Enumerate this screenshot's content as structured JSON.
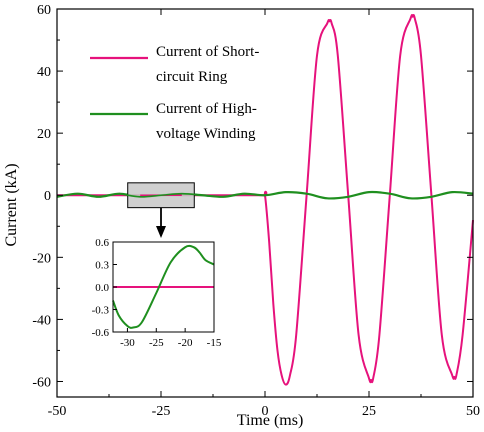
{
  "chart_data": {
    "type": "line",
    "xlabel": "Time (ms)",
    "ylabel": "Current (kA)",
    "xlim": [
      -50,
      50
    ],
    "ylim": [
      -65,
      60
    ],
    "x_ticks": [
      "-50",
      "-25",
      "0",
      "25",
      "50"
    ],
    "y_ticks": [
      "60",
      "40",
      "20",
      "0",
      "-20",
      "-40",
      "-60"
    ],
    "grid": false,
    "legend_position": "top-left",
    "series": [
      {
        "name": "Current of Short-circuit Ring",
        "legend_lines": [
          "Current of Short-",
          "circuit Ring"
        ],
        "color": "#e6127c",
        "x": [
          -50,
          -40,
          -30,
          -20,
          -10,
          -0.5,
          0,
          1,
          2,
          3,
          4,
          5,
          6,
          7.5,
          10,
          12.5,
          15,
          15.5,
          16,
          17.5,
          20,
          22.5,
          25,
          25.5,
          26,
          27.5,
          30,
          32.5,
          35,
          35.5,
          36,
          37.5,
          40,
          42.5,
          45,
          45.5,
          46,
          47.5,
          50
        ],
        "y": [
          0,
          0,
          0,
          0,
          0,
          0,
          0,
          -15,
          -35,
          -50,
          -58,
          -61,
          -58,
          -45,
          0,
          45,
          55.5,
          56,
          55.5,
          45,
          0,
          -45,
          -59,
          -59.5,
          -59,
          -45,
          0,
          45,
          57,
          57.5,
          57,
          45,
          0,
          -45,
          -58,
          -58.5,
          -58,
          -45,
          -8
        ]
      },
      {
        "name": "Current of High-voltage Winding",
        "legend_lines": [
          "Current of High-",
          "voltage Winding"
        ],
        "color": "#1f8f1f",
        "x": [
          -50,
          -45,
          -40,
          -35,
          -30,
          -25,
          -20,
          -15,
          -10,
          -5,
          0,
          5,
          10,
          15,
          20,
          25,
          30,
          35,
          40,
          45,
          50
        ],
        "y": [
          -0.5,
          0.5,
          -0.5,
          0.5,
          -0.5,
          0,
          0.5,
          0,
          -0.5,
          0.5,
          0,
          1,
          0.5,
          -1,
          -0.5,
          1,
          0.5,
          -1,
          -0.5,
          1,
          0.5
        ]
      }
    ],
    "highlight_box": {
      "x_range": [
        -33,
        -17
      ],
      "y_range": [
        -4,
        4
      ]
    },
    "inset": {
      "xlim": [
        -32.5,
        -15
      ],
      "ylim": [
        -0.6,
        0.6
      ],
      "x_ticks": [
        "-30",
        "-25",
        "-20",
        "-15"
      ],
      "y_ticks": [
        "0.6",
        "0.3",
        "0.0",
        "-0.3",
        "-0.6"
      ],
      "series": [
        {
          "color": "#e6127c",
          "x": [
            -32.5,
            -15
          ],
          "y": [
            0,
            0
          ]
        },
        {
          "color": "#1f8f1f",
          "x": [
            -32.5,
            -31.5,
            -30,
            -29,
            -27.5,
            -25,
            -22.5,
            -20,
            -18.5,
            -17.5,
            -16.5,
            -15
          ],
          "y": [
            -0.18,
            -0.38,
            -0.52,
            -0.54,
            -0.47,
            -0.08,
            0.33,
            0.53,
            0.53,
            0.46,
            0.36,
            0.3
          ]
        }
      ]
    }
  }
}
